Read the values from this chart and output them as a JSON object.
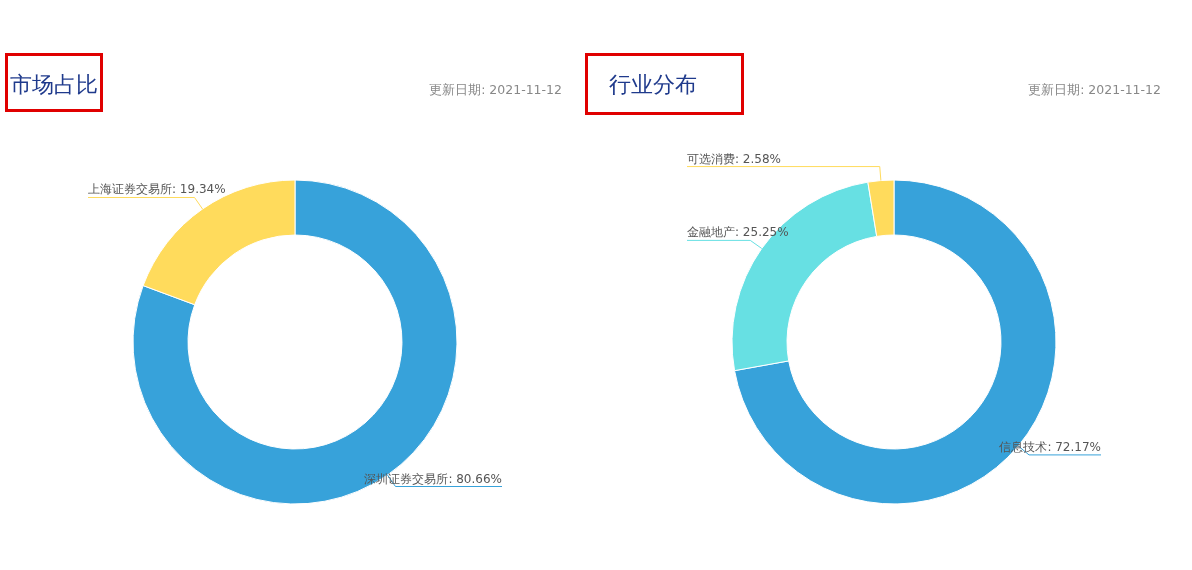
{
  "chart_data": [
    {
      "type": "donut",
      "title": "市场占比",
      "subtitle": "更新日期: 2021-11-12",
      "categories": [
        "深圳证券交易所",
        "上海证券交易所"
      ],
      "values": [
        80.66,
        19.34
      ],
      "colors": [
        "#37a2da",
        "#ffdb5c"
      ],
      "value_labels": [
        "80.66%",
        "19.34%"
      ]
    },
    {
      "type": "donut",
      "title": "行业分布",
      "subtitle": "更新日期: 2021-11-12",
      "categories": [
        "信息技术",
        "金融地产",
        "可选消费"
      ],
      "values": [
        72.17,
        25.25,
        2.58
      ],
      "colors": [
        "#37a2da",
        "#67e0e3",
        "#ffdb5c"
      ],
      "value_labels": [
        "72.17%",
        "25.25%",
        "2.58%"
      ]
    }
  ]
}
